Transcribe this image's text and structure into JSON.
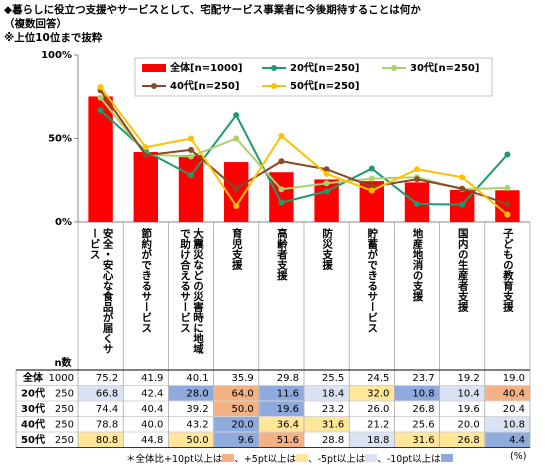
{
  "header": {
    "title": "◆暮らしに役立つ支援やサービスとして、宅配サービス事業者に今後期待することは何か",
    "note1": "（複数回答）",
    "note2": "※上位10位まで抜粋"
  },
  "chart_data": {
    "type": "combo",
    "categories": [
      "安全・安心な食品が届くサービス",
      "節約ができるサービス",
      "大震災などの災害時に地域で助け合えるサービス",
      "育児支援",
      "高齢者支援",
      "防災支援",
      "貯蓄ができるサービス",
      "地産地消の支援",
      "国内の生産者支援",
      "子どもの教育支援"
    ],
    "series": [
      {
        "name": "全体[n=1000]",
        "type": "bar",
        "color": "#ff0000",
        "values": [
          75.2,
          41.9,
          40.1,
          35.9,
          29.8,
          25.5,
          24.5,
          23.7,
          19.2,
          19.0
        ],
        "value_labels": [
          "75.2",
          "41.9",
          "40.1",
          "35.9",
          "29.8",
          "25.5",
          "24.5",
          "23.7",
          "19.2",
          "19.0"
        ]
      },
      {
        "name": "20代[n=250]",
        "type": "line",
        "color": "#1e9a6e",
        "values": [
          66.8,
          42.4,
          28.0,
          64.0,
          11.6,
          18.4,
          32.0,
          10.8,
          10.4,
          40.4
        ],
        "value_labels": [
          "66.8",
          "42.4",
          "28.0",
          "64.0",
          "11.6",
          "18.4",
          "32.0",
          "10.8",
          "10.4",
          "40.4"
        ]
      },
      {
        "name": "30代[n=250]",
        "type": "line",
        "color": "#a9d26b",
        "values": [
          74.4,
          40.4,
          39.2,
          50.0,
          19.6,
          23.2,
          26.0,
          26.8,
          19.6,
          20.4
        ],
        "value_labels": [
          "74.4",
          "40.4",
          "39.2",
          "50.0",
          "19.6",
          "23.2",
          "26.0",
          "26.8",
          "19.6",
          "20.4"
        ]
      },
      {
        "name": "40代[n=250]",
        "type": "line",
        "color": "#8b4726",
        "values": [
          78.8,
          40.0,
          43.2,
          20.0,
          36.4,
          31.6,
          21.2,
          25.6,
          20.0,
          10.8
        ],
        "value_labels": [
          "78.8",
          "40.0",
          "43.2",
          "20.0",
          "36.4",
          "31.6",
          "21.2",
          "25.6",
          "20.0",
          "10.8"
        ]
      },
      {
        "name": "50代[n=250]",
        "type": "line",
        "color": "#ffc000",
        "values": [
          80.8,
          44.8,
          50.0,
          9.6,
          51.6,
          28.8,
          18.8,
          31.6,
          26.8,
          4.4
        ],
        "value_labels": [
          "80.8",
          "44.8",
          "50.0",
          "9.6",
          "51.6",
          "28.8",
          "18.8",
          "31.6",
          "26.8",
          "4.4"
        ]
      }
    ],
    "ylim": [
      0,
      100
    ],
    "yticks": [
      {
        "value": 0,
        "label": "0%"
      },
      {
        "value": 50,
        "label": "50%"
      },
      {
        "value": 100,
        "label": "100%"
      }
    ]
  },
  "table": {
    "n_header": "n数",
    "rows": [
      {
        "label": "全体",
        "n": 1000,
        "cell_colors": [
          null,
          null,
          null,
          null,
          null,
          null,
          null,
          null,
          null,
          null
        ]
      },
      {
        "label": "20代",
        "n": 250,
        "cell_colors": [
          "#dae3f3",
          null,
          "#8faadc",
          "#f4b183",
          "#8faadc",
          "#dae3f3",
          "#ffe699",
          "#8faadc",
          "#dae3f3",
          "#f4b183"
        ]
      },
      {
        "label": "30代",
        "n": 250,
        "cell_colors": [
          null,
          null,
          null,
          "#f4b183",
          "#8faadc",
          null,
          null,
          null,
          null,
          null
        ]
      },
      {
        "label": "40代",
        "n": 250,
        "cell_colors": [
          null,
          null,
          null,
          "#8faadc",
          "#ffe699",
          "#ffe699",
          null,
          null,
          null,
          "#dae3f3"
        ]
      },
      {
        "label": "50代",
        "n": 250,
        "cell_colors": [
          "#ffe699",
          null,
          "#ffe699",
          "#8faadc",
          "#f4b183",
          null,
          "#dae3f3",
          "#ffe699",
          "#ffe699",
          "#8faadc"
        ]
      }
    ]
  },
  "footnote": {
    "parts": [
      "＊全体比+10pt以上は",
      "、+5pt以上は",
      "、-5pt以上は",
      "、-10pt以上は"
    ],
    "swatches": [
      "#f4b183",
      "#ffe699",
      "#dae3f3",
      "#8faadc"
    ],
    "unit": "(%)"
  }
}
